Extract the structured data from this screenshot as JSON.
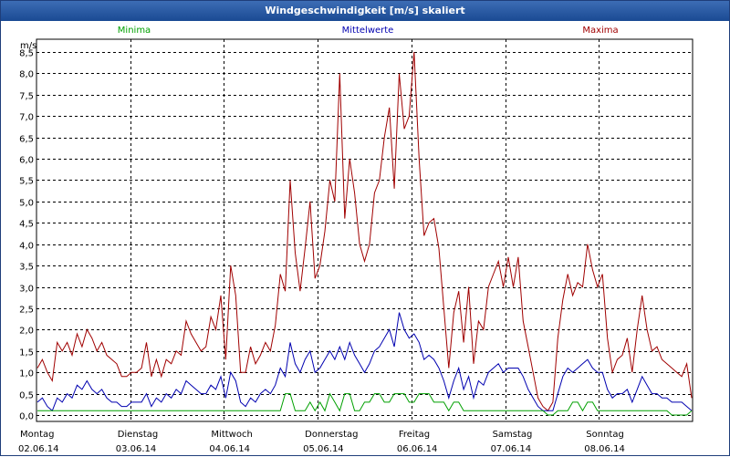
{
  "window": {
    "title": "Windgeschwindigkeit [m/s] skaliert"
  },
  "colors": {
    "minima": "#00a000",
    "mittel": "#0000b0",
    "maxima": "#a00000",
    "titlebar": "#1a4a93"
  },
  "chart_data": {
    "type": "line",
    "ylabel": "m/s",
    "ylim": [
      -0.15,
      8.8
    ],
    "yticks": [
      "0,0",
      "0,5",
      "1,0",
      "1,5",
      "2,0",
      "2,5",
      "3,0",
      "3,5",
      "4,0",
      "4,5",
      "5,0",
      "5,5",
      "6,0",
      "6,5",
      "7,0",
      "7,5",
      "8,0",
      "8,5"
    ],
    "days": [
      {
        "name": "Montag",
        "date": "02.06.14"
      },
      {
        "name": "Dienstag",
        "date": "03.06.14"
      },
      {
        "name": "Mittwoch",
        "date": "04.06.14"
      },
      {
        "name": "Donnerstag",
        "date": "05.06.14"
      },
      {
        "name": "Freitag",
        "date": "06.06.14"
      },
      {
        "name": "Samstag",
        "date": "07.06.14"
      },
      {
        "name": "Sonntag",
        "date": "08.06.14"
      }
    ],
    "legend": [
      "Minima",
      "Mittelwerte",
      "Maxima"
    ],
    "series": [
      {
        "name": "Maxima",
        "values": [
          1.1,
          1.3,
          1.0,
          0.8,
          1.7,
          1.5,
          1.7,
          1.4,
          1.9,
          1.6,
          2.0,
          1.8,
          1.5,
          1.7,
          1.4,
          1.3,
          1.2,
          0.9,
          0.9,
          1.0,
          1.0,
          1.1,
          1.7,
          0.9,
          1.3,
          0.9,
          1.3,
          1.2,
          1.5,
          1.4,
          2.2,
          1.9,
          1.7,
          1.5,
          1.6,
          2.3,
          2.0,
          2.8,
          1.3,
          3.5,
          2.8,
          1.0,
          1.0,
          1.6,
          1.2,
          1.4,
          1.7,
          1.5,
          2.1,
          3.3,
          2.9,
          5.5,
          3.8,
          2.9,
          3.9,
          5.0,
          3.2,
          3.5,
          4.3,
          5.5,
          5.0,
          8.0,
          4.6,
          6.0,
          5.2,
          4.0,
          3.6,
          4.0,
          5.2,
          5.5,
          6.5,
          7.2,
          5.3,
          8.0,
          6.7,
          7.0,
          8.5,
          6.0,
          4.2,
          4.5,
          4.6,
          3.9,
          2.5,
          1.1,
          2.4,
          2.9,
          1.7,
          3.0,
          1.2,
          2.2,
          2.0,
          3.0,
          3.3,
          3.6,
          3.0,
          3.7,
          3.0,
          3.7,
          2.2,
          1.6,
          1.0,
          0.4,
          0.2,
          0.1,
          0.3,
          1.8,
          2.7,
          3.3,
          2.8,
          3.1,
          3.0,
          4.0,
          3.4,
          3.0,
          3.3,
          1.8,
          1.0,
          1.3,
          1.4,
          1.8,
          1.0,
          2.0,
          2.8,
          2.0,
          1.5,
          1.6,
          1.3,
          1.2,
          1.1,
          1.0,
          0.9,
          1.2,
          0.4
        ]
      },
      {
        "name": "Mittelwerte",
        "values": [
          0.3,
          0.4,
          0.2,
          0.1,
          0.4,
          0.3,
          0.5,
          0.4,
          0.7,
          0.6,
          0.8,
          0.6,
          0.5,
          0.6,
          0.4,
          0.3,
          0.3,
          0.2,
          0.2,
          0.3,
          0.3,
          0.3,
          0.5,
          0.2,
          0.4,
          0.3,
          0.5,
          0.4,
          0.6,
          0.5,
          0.8,
          0.7,
          0.6,
          0.5,
          0.5,
          0.7,
          0.6,
          0.9,
          0.4,
          1.0,
          0.8,
          0.3,
          0.2,
          0.4,
          0.3,
          0.5,
          0.6,
          0.5,
          0.7,
          1.1,
          0.9,
          1.7,
          1.2,
          1.0,
          1.3,
          1.5,
          1.0,
          1.1,
          1.3,
          1.5,
          1.3,
          1.6,
          1.3,
          1.7,
          1.4,
          1.2,
          1.0,
          1.2,
          1.5,
          1.6,
          1.8,
          2.0,
          1.6,
          2.4,
          2.0,
          1.8,
          1.9,
          1.7,
          1.3,
          1.4,
          1.3,
          1.1,
          0.8,
          0.4,
          0.8,
          1.1,
          0.6,
          0.9,
          0.4,
          0.8,
          0.7,
          1.0,
          1.1,
          1.2,
          1.0,
          1.1,
          1.1,
          1.1,
          0.9,
          0.6,
          0.4,
          0.2,
          0.1,
          0.1,
          0.1,
          0.5,
          0.9,
          1.1,
          1.0,
          1.1,
          1.2,
          1.3,
          1.1,
          1.0,
          1.0,
          0.6,
          0.4,
          0.5,
          0.5,
          0.6,
          0.3,
          0.6,
          0.9,
          0.7,
          0.5,
          0.5,
          0.4,
          0.4,
          0.3,
          0.3,
          0.3,
          0.2,
          0.1
        ]
      },
      {
        "name": "Minima",
        "values": [
          0.1,
          0.1,
          0.1,
          0.1,
          0.1,
          0.1,
          0.1,
          0.1,
          0.1,
          0.1,
          0.1,
          0.1,
          0.1,
          0.1,
          0.1,
          0.1,
          0.1,
          0.1,
          0.1,
          0.1,
          0.1,
          0.1,
          0.1,
          0.1,
          0.1,
          0.1,
          0.1,
          0.1,
          0.1,
          0.1,
          0.1,
          0.1,
          0.1,
          0.1,
          0.1,
          0.1,
          0.1,
          0.1,
          0.1,
          0.1,
          0.1,
          0.1,
          0.1,
          0.1,
          0.1,
          0.1,
          0.1,
          0.1,
          0.1,
          0.1,
          0.5,
          0.5,
          0.1,
          0.1,
          0.1,
          0.3,
          0.1,
          0.3,
          0.1,
          0.5,
          0.3,
          0.1,
          0.5,
          0.5,
          0.1,
          0.1,
          0.3,
          0.3,
          0.5,
          0.5,
          0.3,
          0.3,
          0.5,
          0.5,
          0.5,
          0.3,
          0.3,
          0.5,
          0.5,
          0.5,
          0.3,
          0.3,
          0.3,
          0.1,
          0.3,
          0.3,
          0.1,
          0.1,
          0.1,
          0.1,
          0.1,
          0.1,
          0.1,
          0.1,
          0.1,
          0.1,
          0.1,
          0.1,
          0.1,
          0.1,
          0.1,
          0.1,
          0.1,
          0.0,
          0.0,
          0.1,
          0.1,
          0.1,
          0.3,
          0.3,
          0.1,
          0.3,
          0.3,
          0.1,
          0.1,
          0.1,
          0.1,
          0.1,
          0.1,
          0.1,
          0.1,
          0.1,
          0.1,
          0.1,
          0.1,
          0.1,
          0.1,
          0.1,
          0.0,
          0.0,
          0.0,
          0.0,
          0.1
        ]
      }
    ]
  }
}
